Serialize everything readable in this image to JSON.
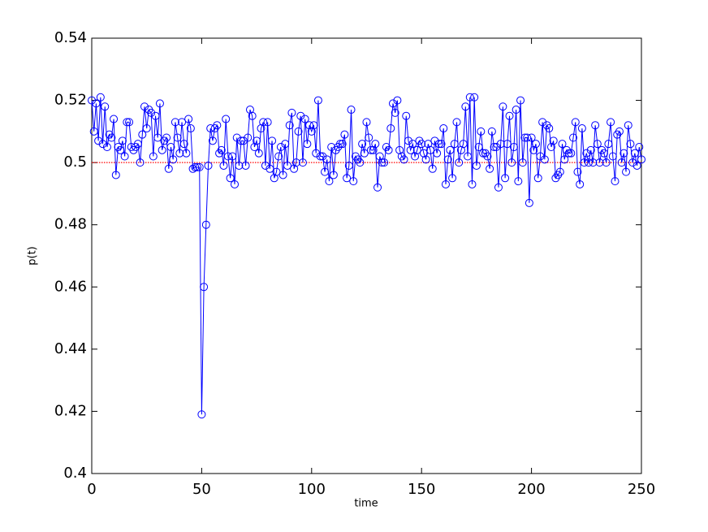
{
  "chart_data": {
    "type": "line",
    "xlabel": "time",
    "ylabel": "p(t)",
    "xlim": [
      0,
      250
    ],
    "ylim": [
      0.4,
      0.54
    ],
    "xticks": [
      0,
      50,
      100,
      150,
      200,
      250
    ],
    "yticks": [
      0.4,
      0.42,
      0.44,
      0.46,
      0.48,
      0.5,
      0.52,
      0.54
    ],
    "grid": false,
    "marker": "circle",
    "reference_line": {
      "value": 0.5,
      "color": "#ff0000"
    },
    "x": [
      0,
      1,
      2,
      3,
      4,
      5,
      6,
      7,
      8,
      9,
      10,
      11,
      12,
      13,
      14,
      15,
      16,
      17,
      18,
      19,
      20,
      21,
      22,
      23,
      24,
      25,
      26,
      27,
      28,
      29,
      30,
      31,
      32,
      33,
      34,
      35,
      36,
      37,
      38,
      39,
      40,
      41,
      42,
      43,
      44,
      45,
      46,
      47,
      48,
      49,
      50,
      51,
      52,
      53,
      54,
      55,
      56,
      57,
      58,
      59,
      60,
      61,
      62,
      63,
      64,
      65,
      66,
      67,
      68,
      69,
      70,
      71,
      72,
      73,
      74,
      75,
      76,
      77,
      78,
      79,
      80,
      81,
      82,
      83,
      84,
      85,
      86,
      87,
      88,
      89,
      90,
      91,
      92,
      93,
      94,
      95,
      96,
      97,
      98,
      99,
      100,
      101,
      102,
      103,
      104,
      105,
      106,
      107,
      108,
      109,
      110,
      111,
      112,
      113,
      114,
      115,
      116,
      117,
      118,
      119,
      120,
      121,
      122,
      123,
      124,
      125,
      126,
      127,
      128,
      129,
      130,
      131,
      132,
      133,
      134,
      135,
      136,
      137,
      138,
      139,
      140,
      141,
      142,
      143,
      144,
      145,
      146,
      147,
      148,
      149,
      150,
      151,
      152,
      153,
      154,
      155,
      156,
      157,
      158,
      159,
      160,
      161,
      162,
      163,
      164,
      165,
      166,
      167,
      168,
      169,
      170,
      171,
      172,
      173,
      174,
      175,
      176,
      177,
      178,
      179,
      180,
      181,
      182,
      183,
      184,
      185,
      186,
      187,
      188,
      189,
      190,
      191,
      192,
      193,
      194,
      195,
      196,
      197,
      198,
      199,
      200,
      201,
      202,
      203,
      204,
      205,
      206,
      207,
      208,
      209,
      210,
      211,
      212,
      213,
      214,
      215,
      216,
      217,
      218,
      219,
      220,
      221,
      222,
      223,
      224,
      225,
      226,
      227,
      228,
      229,
      230,
      231,
      232,
      233,
      234,
      235,
      236,
      237,
      238,
      239,
      240,
      241,
      242,
      243,
      244,
      245,
      246,
      247,
      248,
      249,
      250
    ],
    "series": [
      {
        "color": "#0000ff",
        "values": [
          0.52,
          0.51,
          0.519,
          0.507,
          0.521,
          0.506,
          0.518,
          0.505,
          0.509,
          0.508,
          0.514,
          0.496,
          0.505,
          0.504,
          0.507,
          0.502,
          0.513,
          0.513,
          0.505,
          0.504,
          0.505,
          0.506,
          0.5,
          0.509,
          0.518,
          0.511,
          0.517,
          0.516,
          0.502,
          0.515,
          0.508,
          0.519,
          0.504,
          0.507,
          0.508,
          0.498,
          0.505,
          0.501,
          0.513,
          0.508,
          0.503,
          0.513,
          0.506,
          0.503,
          0.514,
          0.511,
          0.498,
          0.4985,
          0.4985,
          0.4985,
          0.419,
          0.46,
          0.48,
          0.499,
          0.511,
          0.507,
          0.511,
          0.512,
          0.503,
          0.504,
          0.499,
          0.514,
          0.502,
          0.495,
          0.502,
          0.493,
          0.508,
          0.499,
          0.507,
          0.507,
          0.499,
          0.508,
          0.517,
          0.515,
          0.505,
          0.507,
          0.503,
          0.511,
          0.513,
          0.499,
          0.513,
          0.498,
          0.507,
          0.495,
          0.497,
          0.502,
          0.505,
          0.496,
          0.506,
          0.499,
          0.512,
          0.516,
          0.498,
          0.5,
          0.51,
          0.515,
          0.5,
          0.514,
          0.506,
          0.512,
          0.51,
          0.512,
          0.503,
          0.52,
          0.502,
          0.502,
          0.497,
          0.501,
          0.494,
          0.505,
          0.496,
          0.504,
          0.505,
          0.506,
          0.506,
          0.509,
          0.495,
          0.499,
          0.517,
          0.494,
          0.502,
          0.501,
          0.5,
          0.506,
          0.503,
          0.513,
          0.508,
          0.504,
          0.504,
          0.506,
          0.492,
          0.502,
          0.5,
          0.5,
          0.505,
          0.504,
          0.511,
          0.519,
          0.516,
          0.52,
          0.504,
          0.502,
          0.501,
          0.515,
          0.507,
          0.504,
          0.506,
          0.502,
          0.504,
          0.507,
          0.506,
          0.503,
          0.501,
          0.506,
          0.504,
          0.498,
          0.507,
          0.503,
          0.506,
          0.506,
          0.511,
          0.493,
          0.501,
          0.504,
          0.495,
          0.506,
          0.513,
          0.5,
          0.504,
          0.506,
          0.518,
          0.502,
          0.521,
          0.493,
          0.521,
          0.499,
          0.505,
          0.51,
          0.503,
          0.503,
          0.502,
          0.498,
          0.51,
          0.505,
          0.505,
          0.492,
          0.506,
          0.518,
          0.495,
          0.506,
          0.515,
          0.5,
          0.505,
          0.517,
          0.494,
          0.52,
          0.5,
          0.508,
          0.508,
          0.487,
          0.508,
          0.504,
          0.506,
          0.495,
          0.502,
          0.513,
          0.501,
          0.512,
          0.511,
          0.505,
          0.507,
          0.495,
          0.496,
          0.497,
          0.506,
          0.501,
          0.504,
          0.503,
          0.503,
          0.508,
          0.513,
          0.497,
          0.493,
          0.511,
          0.5,
          0.503,
          0.5,
          0.504,
          0.5,
          0.512,
          0.506,
          0.5,
          0.504,
          0.503,
          0.5,
          0.506,
          0.513,
          0.502,
          0.494,
          0.509,
          0.51,
          0.5,
          0.503,
          0.497,
          0.512,
          0.506,
          0.5,
          0.503,
          0.499,
          0.505,
          0.501
        ]
      }
    ]
  }
}
